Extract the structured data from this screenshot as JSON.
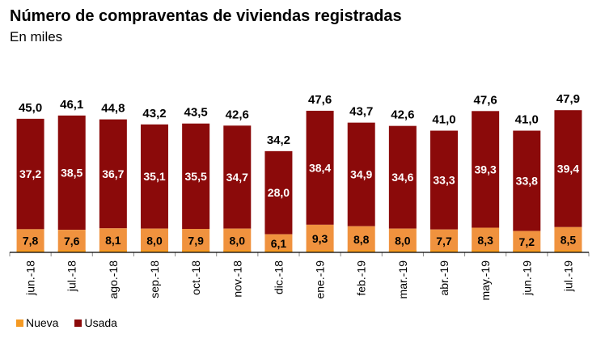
{
  "chart_data": {
    "type": "bar",
    "stacked": true,
    "title": "Número de compraventas de viviendas registradas",
    "subtitle": "En miles",
    "xlabel": "",
    "ylabel": "",
    "ylim": [
      0,
      50
    ],
    "grid": false,
    "legend_position": "bottom-left",
    "categories": [
      "jun.-18",
      "jul.-18",
      "ago.-18",
      "sep.-18",
      "oct.-18",
      "nov.-18",
      "dic.-18",
      "ene.-19",
      "feb.-19",
      "mar.-19",
      "abr.-19",
      "may.-19",
      "jun.-19",
      "jul.-19"
    ],
    "series": [
      {
        "name": "Nueva",
        "color": "#F0923E",
        "values": [
          7.8,
          7.6,
          8.1,
          8.0,
          7.9,
          8.0,
          6.1,
          9.3,
          8.8,
          8.0,
          7.7,
          8.3,
          7.2,
          8.5
        ],
        "labels": [
          "7,8",
          "7,6",
          "8,1",
          "8,0",
          "7,9",
          "8,0",
          "6,1",
          "9,3",
          "8,8",
          "8,0",
          "7,7",
          "8,3",
          "7,2",
          "8,5"
        ]
      },
      {
        "name": "Usada",
        "color": "#8B0A0A",
        "values": [
          37.2,
          38.5,
          36.7,
          35.1,
          35.5,
          34.7,
          28.0,
          38.4,
          34.9,
          34.6,
          33.3,
          39.3,
          33.8,
          39.4
        ],
        "labels": [
          "37,2",
          "38,5",
          "36,7",
          "35,1",
          "35,5",
          "34,7",
          "28,0",
          "38,4",
          "34,9",
          "34,6",
          "33,3",
          "39,3",
          "33,8",
          "39,4"
        ]
      }
    ],
    "totals": [
      45.0,
      46.1,
      44.8,
      43.2,
      43.5,
      42.6,
      34.2,
      47.6,
      43.7,
      42.6,
      41.0,
      47.6,
      41.0,
      47.9
    ],
    "total_labels": [
      "45,0",
      "46,1",
      "44,8",
      "43,2",
      "43,5",
      "42,6",
      "34,2",
      "47,6",
      "43,7",
      "42,6",
      "41,0",
      "47,6",
      "41,0",
      "47,9"
    ],
    "legend": [
      {
        "label": "Nueva",
        "color": "#F59A23"
      },
      {
        "label": "Usada",
        "color": "#8B0A0A"
      }
    ]
  }
}
